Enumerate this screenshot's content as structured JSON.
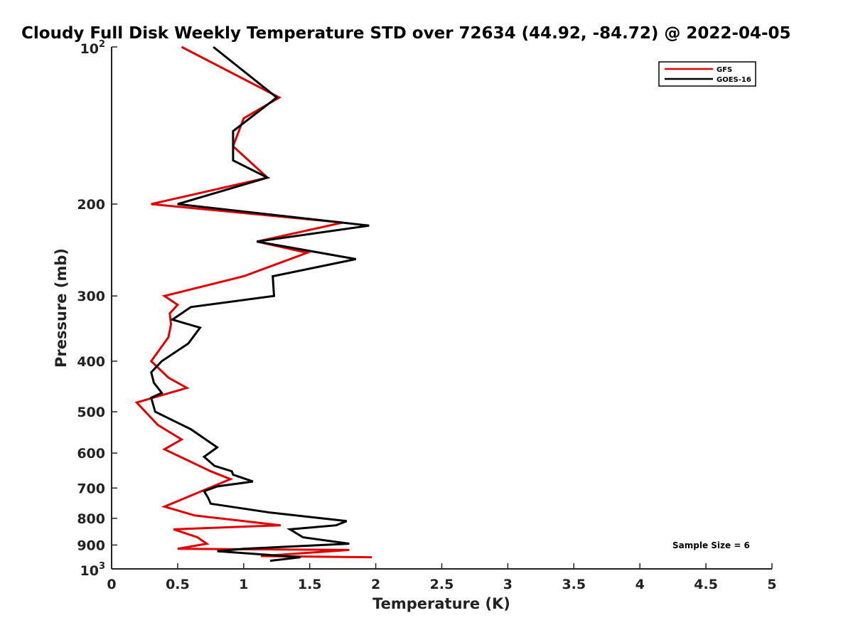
{
  "chart_data": {
    "type": "line",
    "title": "Cloudy Full Disk Weekly Temperature STD over 72634 (44.92, -84.72) @ 2022-04-05",
    "xlabel": "Temperature (K)",
    "ylabel": "Pressure (mb)",
    "xlim": [
      0,
      5
    ],
    "ylim": [
      100,
      1000
    ],
    "y_scale": "log",
    "y_reversed": true,
    "x_ticks": [
      "0",
      "0.5",
      "1",
      "1.5",
      "2",
      "2.5",
      "3",
      "3.5",
      "4",
      "4.5",
      "5"
    ],
    "y_ticks": [
      {
        "value": 100,
        "base": "10",
        "exp": "2"
      },
      {
        "value": 200,
        "label": "200"
      },
      {
        "value": 300,
        "label": "300"
      },
      {
        "value": 400,
        "label": "400"
      },
      {
        "value": 500,
        "label": "500"
      },
      {
        "value": 600,
        "label": "600"
      },
      {
        "value": 700,
        "label": "700"
      },
      {
        "value": 800,
        "label": "800"
      },
      {
        "value": 900,
        "label": "900"
      },
      {
        "value": 1000,
        "base": "10",
        "exp": "3"
      }
    ],
    "legend_position": "top-right",
    "grid": false,
    "annotation": "Sample Size = 6",
    "series": [
      {
        "name": "GFS",
        "color": "#e00000",
        "x": [
          0.53,
          1.27,
          1.0,
          0.92,
          1.18,
          0.3,
          1.75,
          1.1,
          1.48,
          1.0,
          0.4,
          0.5,
          0.44,
          0.45,
          0.43,
          0.3,
          0.43,
          0.57,
          0.19,
          0.35,
          0.53,
          0.4,
          0.75,
          0.9,
          0.4,
          0.63,
          1.28,
          0.47,
          0.65,
          0.72,
          0.5,
          1.8,
          1.13,
          1.97
        ],
        "y": [
          100,
          125,
          137,
          155,
          178,
          200,
          217,
          236,
          248,
          275,
          300,
          312,
          324,
          340,
          360,
          400,
          430,
          450,
          480,
          530,
          565,
          590,
          650,
          673,
          760,
          790,
          825,
          840,
          870,
          895,
          915,
          920,
          945,
          950
        ]
      },
      {
        "name": "GOES-16",
        "color": "#000000",
        "x": [
          0.77,
          1.25,
          0.92,
          0.92,
          1.18,
          0.5,
          1.95,
          1.1,
          1.85,
          1.22,
          1.23,
          0.6,
          0.46,
          0.67,
          0.58,
          0.38,
          0.3,
          0.32,
          0.38,
          0.3,
          0.33,
          0.6,
          0.8,
          0.7,
          0.78,
          0.91,
          0.92,
          1.07,
          0.8,
          0.7,
          0.73,
          0.75,
          1.2,
          1.78,
          1.7,
          1.35,
          1.45,
          1.8,
          1.0,
          0.8,
          1.43,
          1.2
        ],
        "y": [
          100,
          125,
          145,
          165,
          178,
          200,
          220,
          236,
          255,
          275,
          300,
          315,
          333,
          345,
          370,
          400,
          420,
          440,
          460,
          470,
          500,
          540,
          585,
          610,
          635,
          650,
          660,
          680,
          695,
          710,
          730,
          750,
          780,
          810,
          825,
          840,
          870,
          895,
          915,
          925,
          950,
          965
        ]
      }
    ]
  }
}
